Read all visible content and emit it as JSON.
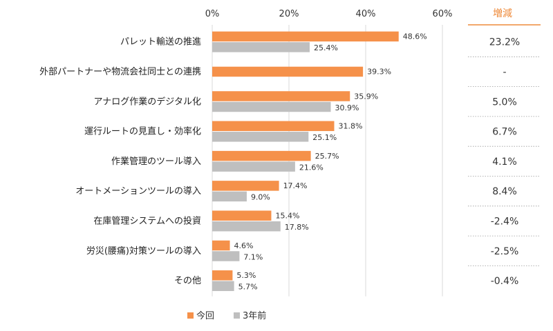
{
  "colors": {
    "current": "#f5914a",
    "previous": "#bfbfbf",
    "accent": "#ee8a3a",
    "grid": "#d9d9d9"
  },
  "chart_data": {
    "type": "bar",
    "orientation": "horizontal",
    "categories": [
      "パレット輸送の推進",
      "外部パートナーや物流会社同士との連携",
      "アナログ作業のデジタル化",
      "運行ルートの見直し・効率化",
      "作業管理のツール導入",
      "オートメーションツールの導入",
      "在庫管理システムへの投資",
      "労災(腰痛)対策ツールの導入",
      "その他"
    ],
    "series": [
      {
        "name": "今回",
        "values": [
          48.6,
          39.3,
          35.9,
          31.8,
          25.7,
          17.4,
          15.4,
          4.6,
          5.3
        ],
        "labels": [
          "48.6%",
          "39.3%",
          "35.9%",
          "31.8%",
          "25.7%",
          "17.4%",
          "15.4%",
          "4.6%",
          "5.3%"
        ]
      },
      {
        "name": "3年前",
        "values": [
          25.4,
          null,
          30.9,
          25.1,
          21.6,
          9.0,
          17.8,
          7.1,
          5.7
        ],
        "labels": [
          "25.4%",
          "",
          "30.9%",
          "25.1%",
          "21.6%",
          "9.0%",
          "17.8%",
          "7.1%",
          "5.7%"
        ]
      }
    ],
    "xlim": [
      0,
      60
    ],
    "xticks": [
      "0%",
      "20%",
      "40%",
      "60%"
    ],
    "xtick_values": [
      0,
      20,
      40,
      60
    ],
    "delta_header": "増減",
    "delta": [
      "23.2%",
      "-",
      "5.0%",
      "6.7%",
      "4.1%",
      "8.4%",
      "-2.4%",
      "-2.5%",
      "-0.4%"
    ],
    "legend": [
      "今回",
      "3年前"
    ],
    "legend_position": "bottom"
  }
}
